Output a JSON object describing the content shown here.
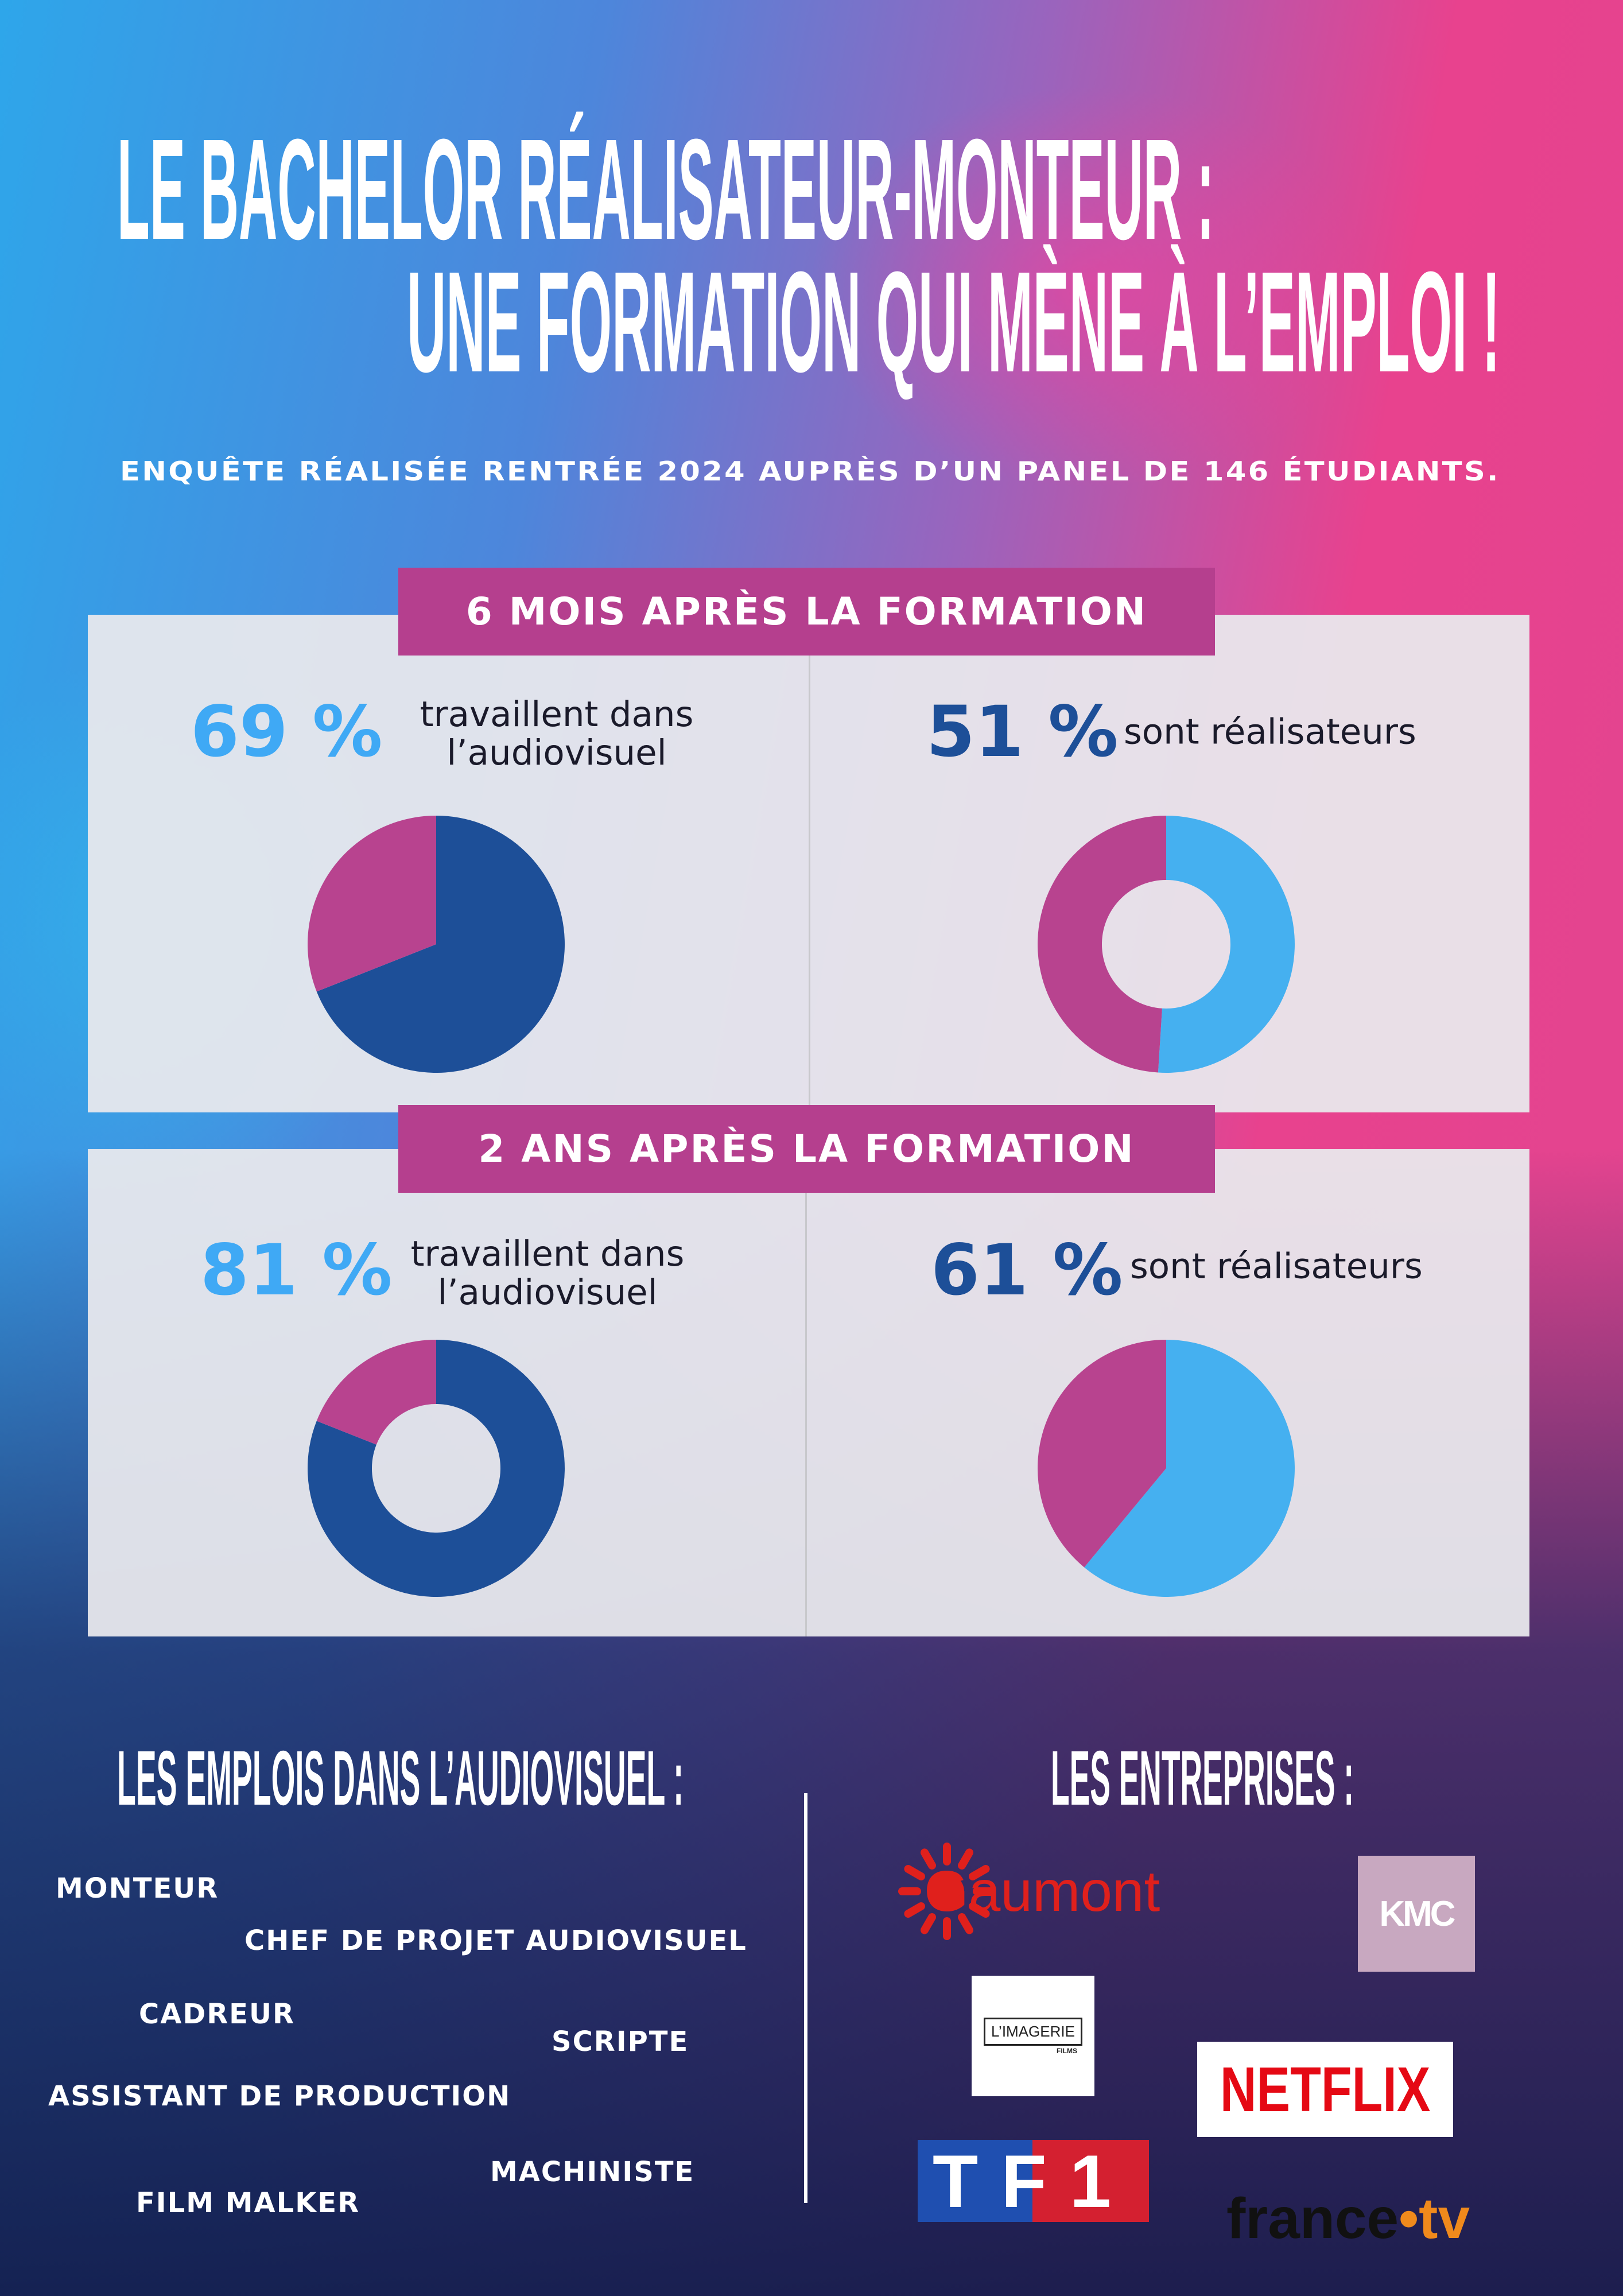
{
  "header": {
    "title_lines": [
      "LE BACHELOR RÉALISATEUR-MONTEUR :",
      "UNE FORMATION QUI MÈNE À L’EMPLOI !"
    ],
    "subtitle": "ENQUÊTE RÉALISÉE RENTRÉE 2024 AUPRÈS D’UN PANEL DE 146 ÉTUDIANTS."
  },
  "sections": [
    "6 MOIS APRÈS LA FORMATION",
    "2 ANS APRÈS LA FORMATION"
  ],
  "chart_data": [
    {
      "type": "pie",
      "title": "travaillent dans l’audiovisuel",
      "values": [
        69,
        31
      ],
      "value_labels": [
        "69 %",
        null
      ],
      "colors": [
        "#1d4f98",
        "#b8438f"
      ],
      "label_color": "#3fa9f5",
      "donut": false
    },
    {
      "type": "pie",
      "title": "sont réalisateurs",
      "values": [
        51,
        49
      ],
      "value_labels": [
        "51 %",
        null
      ],
      "colors": [
        "#45b0f0",
        "#b8438f"
      ],
      "label_color": "#1d4f98",
      "donut": true
    },
    {
      "type": "pie",
      "title": "travaillent dans l’audiovisuel",
      "values": [
        81,
        19
      ],
      "value_labels": [
        "81 %",
        null
      ],
      "colors": [
        "#1d4f98",
        "#b8438f"
      ],
      "label_color": "#3fa9f5",
      "donut": true
    },
    {
      "type": "pie",
      "title": "sont réalisateurs",
      "values": [
        61,
        39
      ],
      "value_labels": [
        "61 %",
        null
      ],
      "colors": [
        "#45b0f0",
        "#b8438f"
      ],
      "label_color": "#1d4f98",
      "donut": false
    }
  ],
  "jobs": {
    "title": "LES EMPLOIS DANS L’AUDIOVISUEL :",
    "items": [
      "MONTEUR",
      "CHEF DE PROJET AUDIOVISUEL",
      "CADREUR",
      "SCRIPTE",
      "ASSISTANT DE PRODUCTION",
      "MACHINISTE",
      "FILM MALKER"
    ]
  },
  "companies": {
    "title": "LES ENTREPRISES :",
    "logos": [
      "Gaumont",
      "KMC",
      "L’IMAGERIE",
      "FILMS",
      "NETFLIX",
      "TF1",
      "france",
      "tv"
    ]
  }
}
